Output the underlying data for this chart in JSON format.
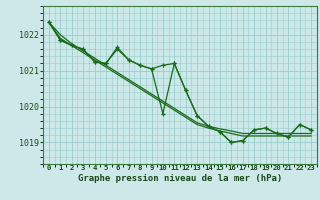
{
  "title": "Graphe pression niveau de la mer (hPa)",
  "bg_color": "#cce8e8",
  "grid_color": "#99cccc",
  "line_color": "#1a6b1a",
  "x_labels": [
    "0",
    "1",
    "2",
    "3",
    "4",
    "5",
    "6",
    "7",
    "8",
    "9",
    "10",
    "11",
    "12",
    "13",
    "14",
    "15",
    "16",
    "17",
    "18",
    "19",
    "20",
    "21",
    "22",
    "23"
  ],
  "ylim": [
    1018.4,
    1022.8
  ],
  "yticks": [
    1019,
    1020,
    1021,
    1022
  ],
  "series_smooth1": [
    1022.35,
    1022.0,
    1021.75,
    1021.55,
    1021.35,
    1021.15,
    1020.95,
    1020.75,
    1020.55,
    1020.35,
    1020.15,
    1019.95,
    1019.75,
    1019.55,
    1019.45,
    1019.38,
    1019.32,
    1019.25,
    1019.25,
    1019.25,
    1019.25,
    1019.25,
    1019.25,
    1019.25
  ],
  "series_smooth2": [
    1022.35,
    1021.9,
    1021.7,
    1021.5,
    1021.3,
    1021.1,
    1020.9,
    1020.7,
    1020.5,
    1020.3,
    1020.1,
    1019.9,
    1019.7,
    1019.5,
    1019.4,
    1019.32,
    1019.25,
    1019.18,
    1019.18,
    1019.18,
    1019.18,
    1019.18,
    1019.18,
    1019.18
  ],
  "series_main": [
    1022.35,
    1021.85,
    1021.7,
    1021.6,
    1021.25,
    1021.2,
    1021.6,
    1021.3,
    1021.15,
    1021.05,
    1021.15,
    1021.2,
    1020.45,
    1019.75,
    1019.45,
    1019.3,
    1019.0,
    1019.05,
    1019.35,
    1019.4,
    1019.25,
    1019.15,
    1019.5,
    1019.35
  ],
  "series_marker": [
    1022.35,
    1021.85,
    1021.7,
    1021.6,
    1021.25,
    1021.2,
    1021.65,
    1021.3,
    1021.15,
    1021.05,
    1019.8,
    1021.2,
    1020.45,
    1019.75,
    1019.45,
    1019.3,
    1019.0,
    1019.05,
    1019.35,
    1019.4,
    1019.25,
    1019.15,
    1019.5,
    1019.35
  ]
}
